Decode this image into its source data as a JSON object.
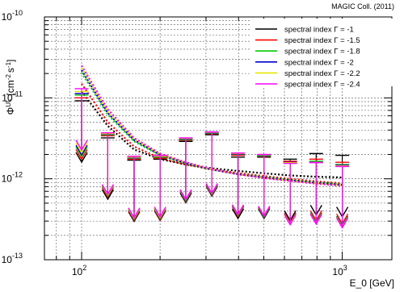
{
  "chart_data": {
    "type": "scatter",
    "top_right_label": "MAGIC Coll. (2011)",
    "ylabel_main": "Φ",
    "ylabel_sup": "UL",
    "ylabel_units": "[cm",
    "ylabel_units_tail": "s",
    "xlabel": "E_0  [GeV]",
    "xlim": [
      72,
      1550
    ],
    "ylim": [
      1e-13,
      1e-10
    ],
    "x_scale": "log",
    "y_scale": "log",
    "grid": true,
    "legend_position": "top-right",
    "x_tick_labels": [
      {
        "value": 100,
        "base": "10",
        "exp": "2"
      },
      {
        "value": 1000,
        "base": "10",
        "exp": "3"
      }
    ],
    "y_tick_labels": [
      {
        "value": 1e-13,
        "base": "10",
        "exp": "-13"
      },
      {
        "value": 1e-12,
        "base": "10",
        "exp": "-12"
      },
      {
        "value": 1e-11,
        "base": "10",
        "exp": "-11"
      },
      {
        "value": 1e-10,
        "base": "10",
        "exp": "-10"
      }
    ],
    "x_bins": [
      100,
      126,
      159,
      200,
      251,
      316,
      398,
      501,
      631,
      794,
      1000
    ],
    "series": [
      {
        "name": "spectral index Γ = -1",
        "color": "#000000",
        "values": [
          9.2e-12,
          3.2e-12,
          1.7e-12,
          1.75e-12,
          2.9e-12,
          3.5e-12,
          1.85e-12,
          1.85e-12,
          1.75e-12,
          2.05e-12,
          1.95e-12
        ],
        "sensitivity": [
          1.2e-11,
          4.5e-12,
          2.3e-12,
          1.75e-12,
          1.5e-12,
          1.35e-12,
          1.25e-12,
          1.17e-12,
          1.1e-12,
          1.06e-12,
          1.04e-12
        ]
      },
      {
        "name": "spectral index Γ = -1.5",
        "color": "#ff0000",
        "values": [
          1e-11,
          3.4e-12,
          1.75e-12,
          1.8e-12,
          3e-12,
          3.6e-12,
          1.95e-12,
          1.9e-12,
          1.65e-12,
          1.75e-12,
          1.6e-12
        ],
        "sensitivity": [
          1.5e-11,
          5e-12,
          2.5e-12,
          1.8e-12,
          1.5e-12,
          1.3e-12,
          1.18e-12,
          1.08e-12,
          1e-12,
          9.3e-13,
          8.8e-13
        ]
      },
      {
        "name": "spectral index Γ = -1.8",
        "color": "#00cc00",
        "values": [
          1.08e-11,
          3.5e-12,
          1.8e-12,
          1.85e-12,
          3.05e-12,
          3.65e-12,
          2e-12,
          1.92e-12,
          1.6e-12,
          1.65e-12,
          1.5e-12
        ],
        "sensitivity": [
          2.05e-11,
          6.2e-12,
          2.9e-12,
          1.95e-12,
          1.55e-12,
          1.3e-12,
          1.15e-12,
          1.05e-12,
          9.7e-13,
          9e-13,
          8.5e-13
        ]
      },
      {
        "name": "spectral index Γ = -2",
        "color": "#0000cc",
        "values": [
          1.13e-11,
          3.55e-12,
          1.82e-12,
          1.88e-12,
          3.1e-12,
          3.7e-12,
          2.02e-12,
          1.95e-12,
          1.6e-12,
          1.62e-12,
          1.48e-12
        ],
        "sensitivity": [
          2.2e-11,
          6.5e-12,
          3e-12,
          1.98e-12,
          1.56e-12,
          1.3e-12,
          1.14e-12,
          1.04e-12,
          9.6e-13,
          8.9e-13,
          8.4e-13
        ]
      },
      {
        "name": "spectral index Γ = -2.2",
        "color": "#e6e600",
        "values": [
          1.2e-11,
          3.6e-12,
          1.85e-12,
          1.9e-12,
          3.15e-12,
          3.75e-12,
          2.05e-12,
          1.98e-12,
          1.58e-12,
          1.6e-12,
          1.45e-12
        ],
        "sensitivity": [
          2.35e-11,
          6.8e-12,
          3.1e-12,
          2.02e-12,
          1.58e-12,
          1.31e-12,
          1.14e-12,
          1.03e-12,
          9.5e-13,
          8.8e-13,
          8.3e-13
        ]
      },
      {
        "name": "spectral index Γ = -2.4",
        "color": "#ff00ff",
        "values": [
          1.3e-11,
          3.7e-12,
          1.9e-12,
          1.95e-12,
          3.2e-12,
          3.8e-12,
          2.08e-12,
          2e-12,
          1.55e-12,
          1.58e-12,
          1.42e-12
        ],
        "sensitivity": [
          2.5e-11,
          7.2e-12,
          3.2e-12,
          2.05e-12,
          1.6e-12,
          1.32e-12,
          1.14e-12,
          1.02e-12,
          9.4e-13,
          8.7e-13,
          8.2e-13
        ]
      }
    ]
  }
}
